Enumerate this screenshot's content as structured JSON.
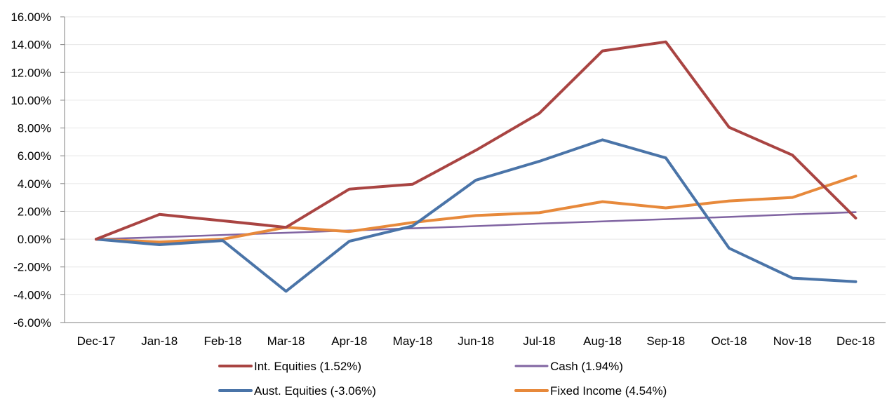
{
  "chart_data": {
    "type": "line",
    "title": "",
    "xlabel": "",
    "ylabel": "",
    "categories": [
      "Dec-17",
      "Jan-18",
      "Feb-18",
      "Mar-18",
      "Apr-18",
      "May-18",
      "Jun-18",
      "Jul-18",
      "Aug-18",
      "Sep-18",
      "Oct-18",
      "Nov-18",
      "Dec-18"
    ],
    "ylim": [
      -6,
      16
    ],
    "yticks": [
      -6,
      -4,
      -2,
      0,
      2,
      4,
      6,
      8,
      10,
      12,
      14,
      16
    ],
    "ytick_labels": [
      "-6.00%",
      "-4.00%",
      "-2.00%",
      "0.00%",
      "2.00%",
      "4.00%",
      "6.00%",
      "8.00%",
      "10.00%",
      "12.00%",
      "14.00%",
      "16.00%"
    ],
    "grid": true,
    "legend_position": "bottom",
    "series": [
      {
        "name": "Int. Equities (1.52%)",
        "color": "#A94442",
        "values": [
          0.0,
          1.78,
          1.32,
          0.85,
          3.6,
          3.95,
          6.4,
          9.05,
          13.55,
          14.2,
          8.05,
          6.05,
          1.52
        ]
      },
      {
        "name": "Cash (1.94%)",
        "color": "#8064A2",
        "values": [
          0.0,
          0.14,
          0.3,
          0.46,
          0.62,
          0.78,
          0.94,
          1.12,
          1.28,
          1.44,
          1.6,
          1.78,
          1.94
        ]
      },
      {
        "name": "Aust. Equities (-3.06%)",
        "color": "#4A74A8",
        "values": [
          0.0,
          -0.4,
          -0.1,
          -3.75,
          -0.15,
          0.95,
          4.25,
          5.6,
          7.15,
          5.85,
          -0.65,
          -2.8,
          -3.06
        ]
      },
      {
        "name": "Fixed Income (4.54%)",
        "color": "#E7893B",
        "values": [
          0.0,
          -0.2,
          0.0,
          0.85,
          0.55,
          1.2,
          1.7,
          1.9,
          2.7,
          2.25,
          2.75,
          3.0,
          4.54
        ]
      }
    ]
  }
}
